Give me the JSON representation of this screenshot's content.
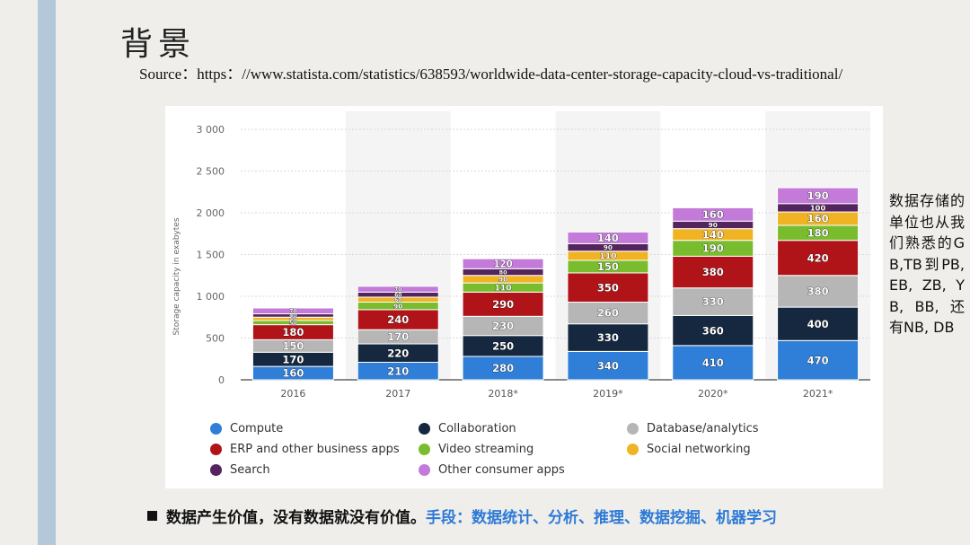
{
  "slide": {
    "title": "背景",
    "source": "Source：https：//www.statista.com/statistics/638593/worldwide-data-center-storage-capacity-cloud-vs-traditional/",
    "note": "数据存储的单位也从我们熟悉的GB,TB到PB, EB, ZB, YB, BB, 还有NB, DB",
    "bullet_main": "数据产生价值，没有数据就没有价值。",
    "bullet_accent": "手段：数据统计、分析、推理、数据挖掘、机器学习",
    "accent_color": "#2d7ad6"
  },
  "chart_data": {
    "type": "bar",
    "stacked": true,
    "categories": [
      "2016",
      "2017",
      "2018*",
      "2019*",
      "2020*",
      "2021*"
    ],
    "ylabel": "Storage capacity in exabytes",
    "ylim": [
      0,
      3000
    ],
    "yticks": [
      "0",
      "500",
      "1 000",
      "1 500",
      "2 000",
      "2 500",
      "3 000"
    ],
    "grid": true,
    "legend_position": "bottom",
    "series": [
      {
        "name": "Compute",
        "color": "#2f7ed8",
        "values": [
          160,
          210,
          280,
          340,
          410,
          470
        ]
      },
      {
        "name": "Collaboration",
        "color": "#15283f",
        "values": [
          170,
          220,
          250,
          330,
          360,
          400
        ]
      },
      {
        "name": "Database/analytics",
        "color": "#b6b6b6",
        "values": [
          150,
          170,
          230,
          260,
          330,
          380
        ]
      },
      {
        "name": "ERP and other business apps",
        "color": "#b01419",
        "values": [
          180,
          240,
          290,
          350,
          380,
          420
        ]
      },
      {
        "name": "Video streaming",
        "color": "#79bd2f",
        "values": [
          50,
          90,
          110,
          150,
          190,
          180
        ]
      },
      {
        "name": "Social networking",
        "color": "#f0b323",
        "values": [
          40,
          60,
          90,
          110,
          140,
          160
        ]
      },
      {
        "name": "Search",
        "color": "#54245e",
        "values": [
          40,
          60,
          80,
          90,
          90,
          100
        ]
      },
      {
        "name": "Other consumer apps",
        "color": "#c37ad9",
        "values": [
          70,
          70,
          120,
          140,
          160,
          190
        ]
      }
    ],
    "segment_labels": [
      [
        "160",
        "170",
        "150",
        "180",
        "50",
        "40",
        "40",
        "70"
      ],
      [
        "210",
        "220",
        "170",
        "240",
        "90",
        "60",
        "60",
        "70"
      ],
      [
        "280",
        "250",
        "230",
        "290",
        "110",
        "90",
        "80",
        "120"
      ],
      [
        "340",
        "330",
        "260",
        "350",
        "150",
        "110",
        "90",
        "140"
      ],
      [
        "410",
        "360",
        "330",
        "380",
        "190",
        "140",
        "90",
        "160"
      ],
      [
        "470",
        "400",
        "380",
        "420",
        "180",
        "160",
        "100",
        "190"
      ]
    ]
  }
}
